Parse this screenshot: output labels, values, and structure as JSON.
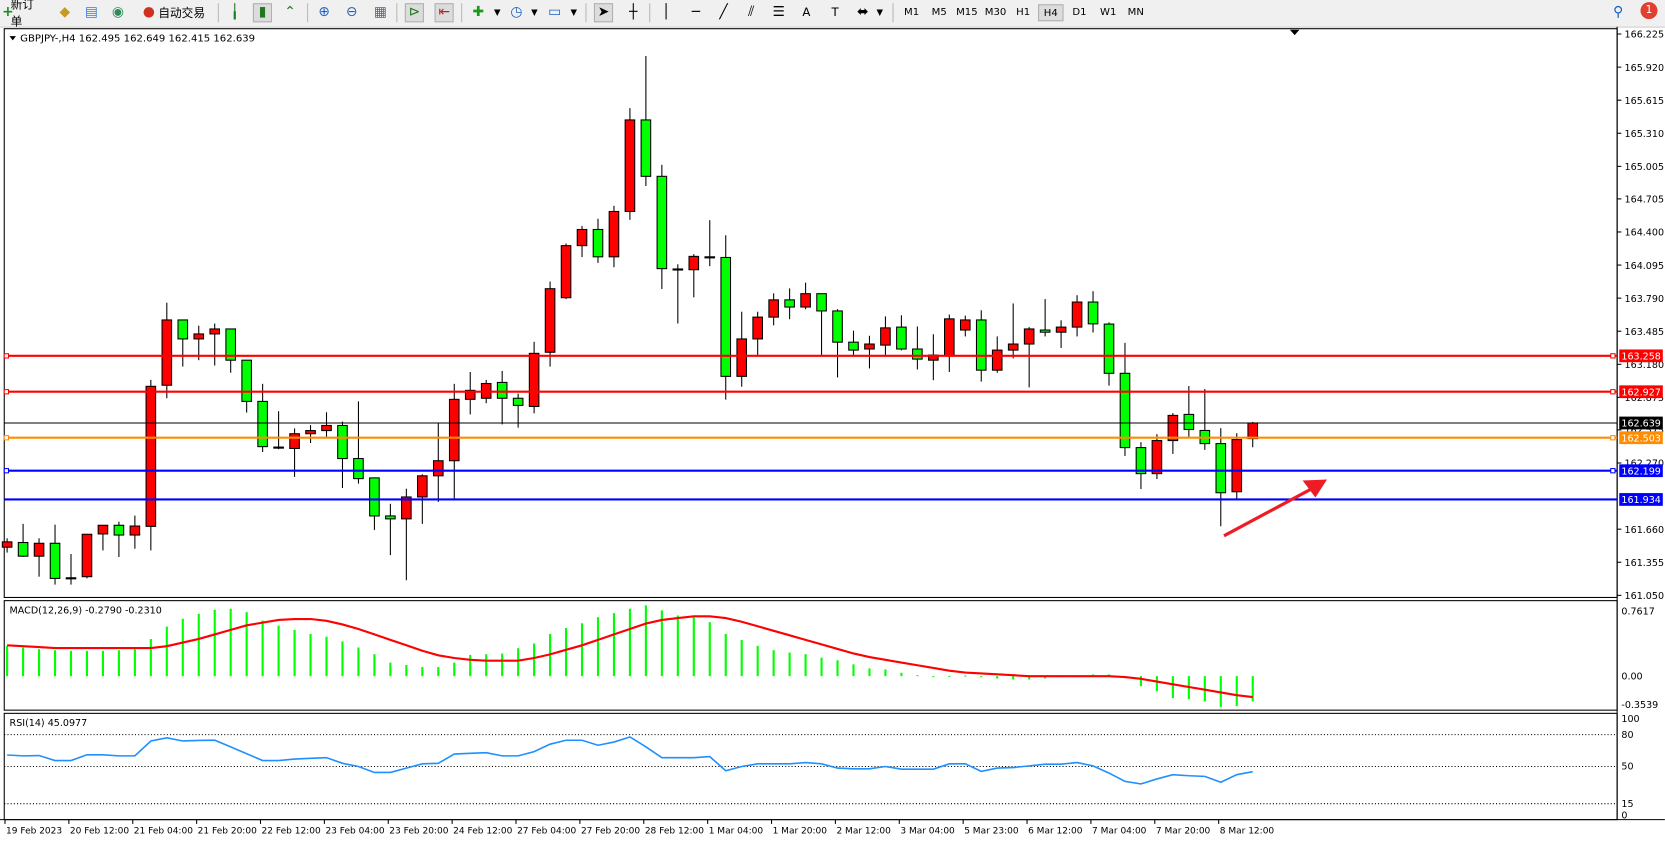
{
  "toolbar": {
    "new_order_label": "新订单",
    "auto_trading_label": "自动交易",
    "timeframes": [
      "M1",
      "M5",
      "M15",
      "M30",
      "H1",
      "H4",
      "D1",
      "W1",
      "MN"
    ],
    "active_timeframe": "H4",
    "notification_count": "1"
  },
  "chart": {
    "header": "GBPJPY-,H4  162.495 162.649 162.415 162.639",
    "bull_color": "#ff0000",
    "bear_color": "#00ff00",
    "price_ticks": [
      "166.225",
      "165.920",
      "165.615",
      "165.310",
      "165.005",
      "164.705",
      "164.400",
      "164.095",
      "163.790",
      "163.485",
      "163.180",
      "162.875",
      "162.575",
      "162.270",
      "161.660",
      "161.355",
      "161.050"
    ],
    "levels": [
      {
        "price": 163.258,
        "label": "163.258",
        "color": "#ff0000"
      },
      {
        "price": 162.927,
        "label": "162.927",
        "color": "#ff0000"
      },
      {
        "price": 162.639,
        "label": "162.639",
        "color": "#000000"
      },
      {
        "price": 162.503,
        "label": "162.503",
        "color": "#ff8c00"
      },
      {
        "price": 162.199,
        "label": "162.199",
        "color": "#0000ff"
      },
      {
        "price": 161.934,
        "label": "161.934",
        "color": "#0000ff"
      }
    ],
    "annotation_arrow_color": "#ee1c25",
    "time_labels": [
      "19 Feb 2023",
      "20 Feb 12:00",
      "21 Feb 04:00",
      "21 Feb 20:00",
      "22 Feb 12:00",
      "23 Feb 04:00",
      "23 Feb 20:00",
      "24 Feb 12:00",
      "27 Feb 04:00",
      "27 Feb 20:00",
      "28 Feb 12:00",
      "1 Mar 04:00",
      "1 Mar 20:00",
      "2 Mar 12:00",
      "3 Mar 04:00",
      "5 Mar 23:00",
      "6 Mar 12:00",
      "7 Mar 04:00",
      "7 Mar 20:00",
      "8 Mar 12:00"
    ]
  },
  "macd": {
    "label": "MACD(12,26,9) -0.2790 -0.2310",
    "ticks": [
      "0.7617",
      "0.00",
      "-0.3539"
    ],
    "hist_color": "#00ff00",
    "signal_color": "#ff0000"
  },
  "rsi": {
    "label": "RSI(14) 45.0977",
    "ticks": [
      "100",
      "80",
      "50",
      "15",
      "0"
    ],
    "color": "#1e90ff"
  },
  "chart_data": {
    "type": "candlestick",
    "symbol": "GBPJPY-",
    "timeframe": "H4",
    "ylim": [
      161.05,
      166.225
    ],
    "ohlc": [
      [
        161.494,
        161.576,
        161.444,
        161.543
      ],
      [
        161.537,
        161.709,
        161.405,
        161.411
      ],
      [
        161.411,
        161.576,
        161.222,
        161.53
      ],
      [
        161.53,
        161.702,
        161.149,
        161.206
      ],
      [
        161.212,
        161.431,
        161.149,
        161.212
      ],
      [
        161.222,
        161.613,
        161.206,
        161.613
      ],
      [
        161.616,
        161.696,
        161.464,
        161.696
      ],
      [
        161.696,
        161.729,
        161.404,
        161.606
      ],
      [
        161.606,
        161.785,
        161.48,
        161.689
      ],
      [
        161.686,
        163.036,
        161.464,
        162.977
      ],
      [
        162.987,
        163.748,
        162.867,
        163.589
      ],
      [
        163.589,
        163.589,
        163.159,
        163.414
      ],
      [
        163.414,
        163.536,
        163.218,
        163.46
      ],
      [
        163.46,
        163.556,
        163.169,
        163.506
      ],
      [
        163.506,
        163.506,
        163.102,
        163.218
      ],
      [
        163.218,
        163.218,
        162.735,
        162.838
      ],
      [
        162.838,
        163.0,
        162.371,
        162.421
      ],
      [
        162.417,
        162.748,
        162.397,
        162.417
      ],
      [
        162.404,
        162.589,
        162.142,
        162.54
      ],
      [
        162.54,
        162.619,
        162.454,
        162.569
      ],
      [
        162.569,
        162.738,
        162.513,
        162.616
      ],
      [
        162.616,
        162.652,
        162.04,
        162.311
      ],
      [
        162.311,
        162.838,
        162.08,
        162.126
      ],
      [
        162.133,
        162.133,
        161.653,
        161.782
      ],
      [
        161.782,
        161.894,
        161.421,
        161.755
      ],
      [
        161.755,
        162.033,
        161.189,
        161.957
      ],
      [
        161.957,
        162.166,
        161.709,
        162.152
      ],
      [
        162.152,
        162.636,
        161.911,
        162.291
      ],
      [
        162.291,
        163.0,
        161.924,
        162.857
      ],
      [
        162.857,
        163.109,
        162.718,
        162.94
      ],
      [
        162.867,
        163.036,
        162.821,
        163.003
      ],
      [
        163.013,
        163.119,
        162.626,
        162.867
      ],
      [
        162.867,
        162.91,
        162.596,
        162.801
      ],
      [
        162.791,
        163.387,
        162.728,
        163.281
      ],
      [
        163.291,
        163.943,
        163.159,
        163.877
      ],
      [
        163.794,
        164.294,
        163.781,
        164.274
      ],
      [
        164.274,
        164.456,
        164.168,
        164.423
      ],
      [
        164.423,
        164.522,
        164.115,
        164.171
      ],
      [
        164.171,
        164.641,
        164.075,
        164.589
      ],
      [
        164.589,
        165.542,
        164.512,
        165.433
      ],
      [
        165.433,
        166.022,
        164.824,
        164.913
      ],
      [
        164.913,
        165.019,
        163.874,
        164.062
      ],
      [
        164.059,
        164.102,
        163.556,
        164.059
      ],
      [
        164.052,
        164.195,
        163.797,
        164.175
      ],
      [
        164.171,
        164.509,
        164.085,
        164.171
      ],
      [
        164.165,
        164.37,
        162.854,
        163.069
      ],
      [
        163.069,
        163.665,
        162.973,
        163.414
      ],
      [
        163.414,
        163.665,
        163.258,
        163.615
      ],
      [
        163.615,
        163.834,
        163.539,
        163.774
      ],
      [
        163.774,
        163.88,
        163.596,
        163.708
      ],
      [
        163.708,
        163.933,
        163.688,
        163.831
      ],
      [
        163.831,
        163.831,
        163.258,
        163.672
      ],
      [
        163.672,
        163.688,
        163.059,
        163.384
      ],
      [
        163.384,
        163.49,
        163.265,
        163.311
      ],
      [
        163.321,
        163.443,
        163.142,
        163.367
      ],
      [
        163.357,
        163.622,
        163.265,
        163.516
      ],
      [
        163.523,
        163.632,
        163.308,
        163.321
      ],
      [
        163.321,
        163.529,
        163.132,
        163.228
      ],
      [
        163.218,
        163.457,
        163.033,
        163.265
      ],
      [
        163.258,
        163.639,
        163.109,
        163.599
      ],
      [
        163.496,
        163.629,
        163.437,
        163.589
      ],
      [
        163.589,
        163.678,
        163.02,
        163.126
      ],
      [
        163.126,
        163.437,
        163.102,
        163.311
      ],
      [
        163.311,
        163.741,
        163.235,
        163.367
      ],
      [
        163.367,
        163.523,
        162.967,
        163.506
      ],
      [
        163.496,
        163.781,
        163.437,
        163.476
      ],
      [
        163.476,
        163.586,
        163.331,
        163.523
      ],
      [
        163.523,
        163.817,
        163.437,
        163.754
      ],
      [
        163.754,
        163.854,
        163.473,
        163.553
      ],
      [
        163.551,
        163.567,
        162.983,
        163.097
      ],
      [
        163.097,
        163.378,
        162.335,
        162.412
      ],
      [
        162.412,
        162.462,
        162.03,
        162.172
      ],
      [
        162.172,
        162.536,
        162.122,
        162.477
      ],
      [
        162.477,
        162.73,
        162.354,
        162.709
      ],
      [
        162.718,
        162.98,
        162.511,
        162.579
      ],
      [
        162.57,
        162.952,
        162.391,
        162.449
      ],
      [
        162.449,
        162.591,
        161.687,
        161.996
      ],
      [
        162.005,
        162.545,
        161.943,
        162.486
      ],
      [
        162.495,
        162.649,
        162.415,
        162.639
      ]
    ],
    "macd_hist": [
      0.334,
      0.316,
      0.297,
      0.286,
      0.279,
      0.279,
      0.279,
      0.286,
      0.297,
      0.409,
      0.546,
      0.632,
      0.687,
      0.732,
      0.743,
      0.706,
      0.613,
      0.557,
      0.509,
      0.465,
      0.435,
      0.383,
      0.316,
      0.242,
      0.149,
      0.123,
      0.1,
      0.1,
      0.149,
      0.234,
      0.242,
      0.249,
      0.308,
      0.36,
      0.465,
      0.531,
      0.583,
      0.65,
      0.695,
      0.743,
      0.78,
      0.725,
      0.669,
      0.65,
      0.595,
      0.465,
      0.398,
      0.334,
      0.286,
      0.26,
      0.242,
      0.204,
      0.175,
      0.13,
      0.085,
      0.074,
      0.037,
      0.011,
      -0.004,
      0.004,
      0.007,
      -0.011,
      -0.026,
      -0.037,
      -0.037,
      -0.026,
      -0.011,
      0.0,
      0.019,
      0.019,
      -0.011,
      -0.111,
      -0.167,
      -0.242,
      -0.253,
      -0.279,
      -0.34,
      -0.33,
      -0.279
    ],
    "macd_signal": [
      0.34,
      0.33,
      0.32,
      0.31,
      0.31,
      0.31,
      0.31,
      0.31,
      0.31,
      0.31,
      0.33,
      0.37,
      0.41,
      0.46,
      0.51,
      0.56,
      0.59,
      0.62,
      0.63,
      0.63,
      0.61,
      0.57,
      0.52,
      0.46,
      0.4,
      0.34,
      0.28,
      0.23,
      0.2,
      0.18,
      0.17,
      0.17,
      0.17,
      0.2,
      0.24,
      0.29,
      0.34,
      0.4,
      0.46,
      0.52,
      0.58,
      0.62,
      0.64,
      0.66,
      0.66,
      0.64,
      0.6,
      0.55,
      0.5,
      0.45,
      0.4,
      0.35,
      0.3,
      0.25,
      0.21,
      0.18,
      0.15,
      0.12,
      0.09,
      0.06,
      0.04,
      0.03,
      0.02,
      0.01,
      0.0,
      0.0,
      0.0,
      0.0,
      0.0,
      0.0,
      -0.01,
      -0.03,
      -0.06,
      -0.09,
      -0.12,
      -0.15,
      -0.18,
      -0.21,
      -0.231
    ],
    "macd_ylim": [
      -0.3539,
      0.7617
    ],
    "rsi": [
      60.8,
      60,
      60.3,
      55.6,
      55.6,
      61,
      61,
      60,
      60,
      74,
      77,
      74,
      74.5,
      74.7,
      68.5,
      62,
      55.6,
      55.6,
      57,
      57.7,
      58.3,
      53,
      50,
      44.4,
      44.4,
      48.5,
      52.5,
      53,
      61.7,
      62.4,
      63,
      60,
      60,
      64,
      71,
      74.7,
      74.7,
      70,
      73,
      77.8,
      68.5,
      58.3,
      58.3,
      58.3,
      59.3,
      46,
      50,
      52.5,
      52.5,
      52.5,
      53.7,
      52.5,
      48.5,
      47.8,
      47.8,
      50,
      47.5,
      47.5,
      47.5,
      52.5,
      52.5,
      45.4,
      48.5,
      49,
      50.6,
      52.2,
      52.2,
      53.7,
      50.6,
      43.8,
      36,
      33.6,
      38.3,
      42.3,
      41.3,
      40.7,
      35.2,
      42.3,
      45.1
    ],
    "rsi_levels": [
      80,
      50,
      15
    ],
    "rsi_ylim": [
      0,
      100
    ]
  }
}
